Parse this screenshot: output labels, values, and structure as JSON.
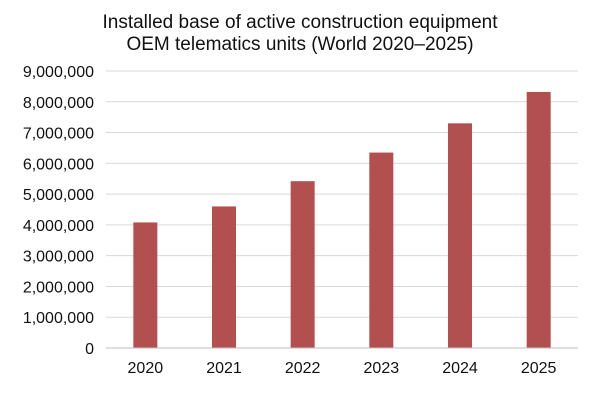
{
  "chart_data": {
    "type": "bar",
    "title_lines": [
      "Installed base of active construction equipment",
      "OEM telematics units (World 2020–2025)"
    ],
    "categories": [
      "2020",
      "2021",
      "2022",
      "2023",
      "2024",
      "2025"
    ],
    "values": [
      4080000,
      4600000,
      5420000,
      6350000,
      7300000,
      8320000
    ],
    "ylim": [
      0,
      9000000
    ],
    "y_ticks": [
      0,
      1000000,
      2000000,
      3000000,
      4000000,
      5000000,
      6000000,
      7000000,
      8000000,
      9000000
    ],
    "y_tick_labels": [
      "0",
      "1,000,000",
      "2,000,000",
      "3,000,000",
      "4,000,000",
      "5,000,000",
      "6,000,000",
      "7,000,000",
      "8,000,000",
      "9,000,000"
    ],
    "xlabel": "",
    "ylabel": "",
    "grid": true,
    "legend": "none",
    "colors": {
      "bar": "#b25050",
      "grid": "#d9d9d9",
      "axis": "#bfbfbf",
      "text": "#111111"
    }
  }
}
